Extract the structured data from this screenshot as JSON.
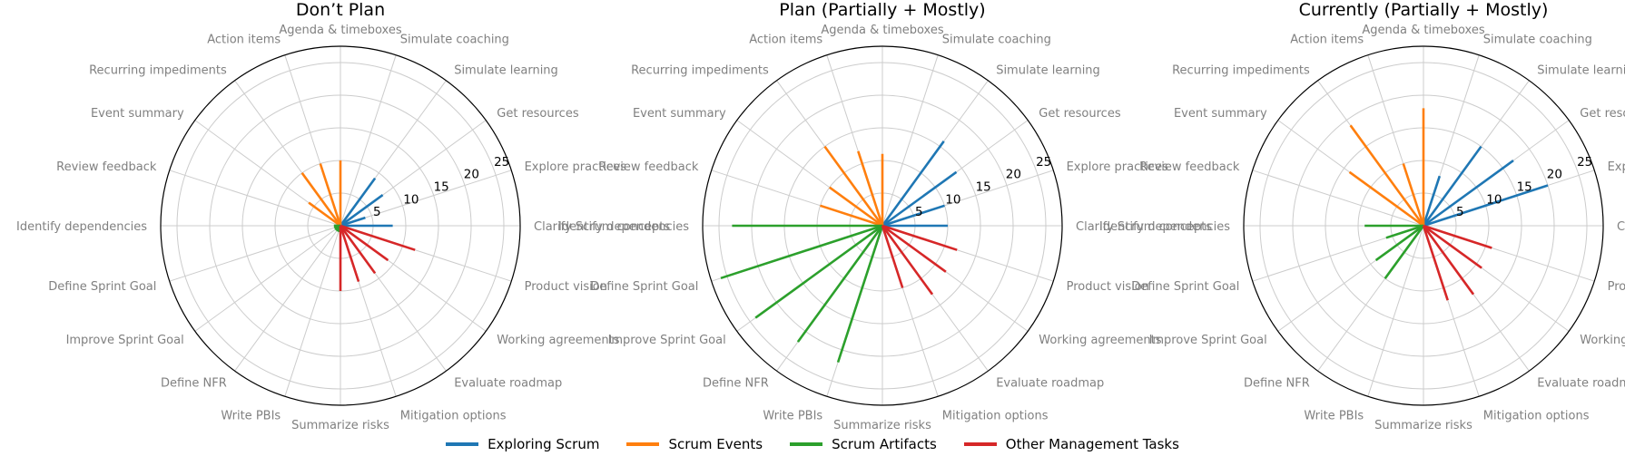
{
  "chart_data": [
    {
      "type": "radial-bar",
      "title": "Don’t Plan",
      "rticks": [
        5,
        10,
        15,
        20,
        25
      ],
      "rlim": [
        0,
        27.5
      ],
      "grid": true,
      "categories": [
        "Clarify Scrum concepts",
        "Explore practices",
        "Get resources",
        "Simulate learning",
        "Simulate coaching",
        "Agenda & timeboxes",
        "Action items",
        "Recurring impediments",
        "Event summary",
        "Review feedback",
        "Identify dependencies",
        "Define Sprint Goal",
        "Improve Sprint Goal",
        "Define NFR",
        "Write PBIs",
        "Summarize risks",
        "Mitigation options",
        "Evaluate roadmap",
        "Working agreements",
        "Product vision"
      ],
      "series": [
        {
          "name": "Exploring Scrum",
          "values": [
            8,
            4,
            8,
            9,
            0,
            0,
            0,
            0,
            0,
            0,
            0,
            0,
            0,
            0,
            0,
            0,
            0,
            0,
            0,
            0
          ]
        },
        {
          "name": "Scrum Events",
          "values": [
            0,
            0,
            0,
            0,
            0,
            10,
            10,
            10,
            6,
            0,
            0,
            0,
            0,
            0,
            0,
            0,
            0,
            0,
            0,
            0
          ]
        },
        {
          "name": "Scrum Artifacts",
          "values": [
            0,
            0,
            0,
            0,
            0,
            0,
            0,
            0,
            0,
            0,
            1,
            1,
            1,
            1,
            1,
            0,
            0,
            0,
            0,
            0
          ]
        },
        {
          "name": "Other Management Tasks",
          "values": [
            0,
            0,
            0,
            0,
            0,
            0,
            0,
            0,
            0,
            0,
            0,
            0,
            0,
            0,
            0,
            10,
            9,
            9,
            9,
            12
          ]
        }
      ]
    },
    {
      "type": "radial-bar",
      "title": "Plan (Partially + Mostly)",
      "rticks": [
        5,
        10,
        15,
        20,
        25
      ],
      "rlim": [
        0,
        27.5
      ],
      "grid": true,
      "categories": [
        "Clarify Scrum concepts",
        "Explore practices",
        "Get resources",
        "Simulate learning",
        "Simulate coaching",
        "Agenda & timeboxes",
        "Action items",
        "Recurring impediments",
        "Event summary",
        "Review feedback",
        "Identify dependencies",
        "Define Sprint Goal",
        "Improve Sprint Goal",
        "Define NFR",
        "Write PBIs",
        "Summarize risks",
        "Mitigation options",
        "Evaluate roadmap",
        "Working agreements",
        "Product vision"
      ],
      "series": [
        {
          "name": "Exploring Scrum",
          "values": [
            10,
            10,
            14,
            16,
            0,
            0,
            0,
            0,
            0,
            0,
            0,
            0,
            0,
            0,
            0,
            0,
            0,
            0,
            0,
            0
          ]
        },
        {
          "name": "Scrum Events",
          "values": [
            0,
            0,
            0,
            0,
            0,
            11,
            12,
            15,
            10,
            10,
            0,
            0,
            0,
            0,
            0,
            0,
            0,
            0,
            0,
            0
          ]
        },
        {
          "name": "Scrum Artifacts",
          "values": [
            0,
            0,
            0,
            0,
            0,
            0,
            0,
            0,
            0,
            0,
            23,
            26,
            24,
            22,
            22,
            0,
            0,
            0,
            0,
            0
          ]
        },
        {
          "name": "Other Management Tasks",
          "values": [
            0,
            0,
            0,
            0,
            0,
            0,
            0,
            0,
            0,
            0,
            0,
            0,
            0,
            0,
            0,
            0,
            10,
            13,
            12,
            12
          ]
        }
      ]
    },
    {
      "type": "radial-bar",
      "title": "Currently (Partially + Mostly)",
      "rticks": [
        5,
        10,
        15,
        20,
        25
      ],
      "rlim": [
        0,
        27.5
      ],
      "grid": true,
      "categories": [
        "Clarify Scrum concepts",
        "Explore practices",
        "Get resources",
        "Simulate learning",
        "Simulate coaching",
        "Agenda & timeboxes",
        "Action items",
        "Recurring impediments",
        "Event summary",
        "Review feedback",
        "Identify dependencies",
        "Define Sprint Goal",
        "Improve Sprint Goal",
        "Define NFR",
        "Write PBIs",
        "Summarize risks",
        "Mitigation options",
        "Evaluate roadmap",
        "Working agreements",
        "Product vision"
      ],
      "series": [
        {
          "name": "Exploring Scrum",
          "values": [
            0,
            20,
            17,
            15,
            8,
            0,
            0,
            0,
            0,
            0,
            0,
            0,
            0,
            0,
            0,
            0,
            0,
            0,
            0,
            0
          ]
        },
        {
          "name": "Scrum Events",
          "values": [
            0,
            0,
            0,
            0,
            0,
            18,
            10,
            19,
            14,
            0,
            0,
            0,
            0,
            0,
            0,
            0,
            0,
            0,
            0,
            0
          ]
        },
        {
          "name": "Scrum Artifacts",
          "values": [
            0,
            0,
            0,
            0,
            0,
            0,
            0,
            0,
            0,
            0,
            9,
            6,
            9,
            10,
            0,
            0,
            0,
            0,
            0,
            0
          ]
        },
        {
          "name": "Other Management Tasks",
          "values": [
            0,
            0,
            0,
            0,
            0,
            0,
            0,
            0,
            0,
            0,
            0,
            0,
            0,
            0,
            0,
            0,
            12,
            13,
            11,
            11
          ]
        }
      ]
    }
  ],
  "colors": {
    "Exploring Scrum": "#1f77b4",
    "Scrum Events": "#ff7f0e",
    "Scrum Artifacts": "#2ca02c",
    "Other Management Tasks": "#d62728",
    "grid": "#cccccc",
    "label": "#808080"
  },
  "legend": {
    "position": "bottom-center",
    "items": [
      "Exploring Scrum",
      "Scrum Events",
      "Scrum Artifacts",
      "Other Management Tasks"
    ]
  }
}
